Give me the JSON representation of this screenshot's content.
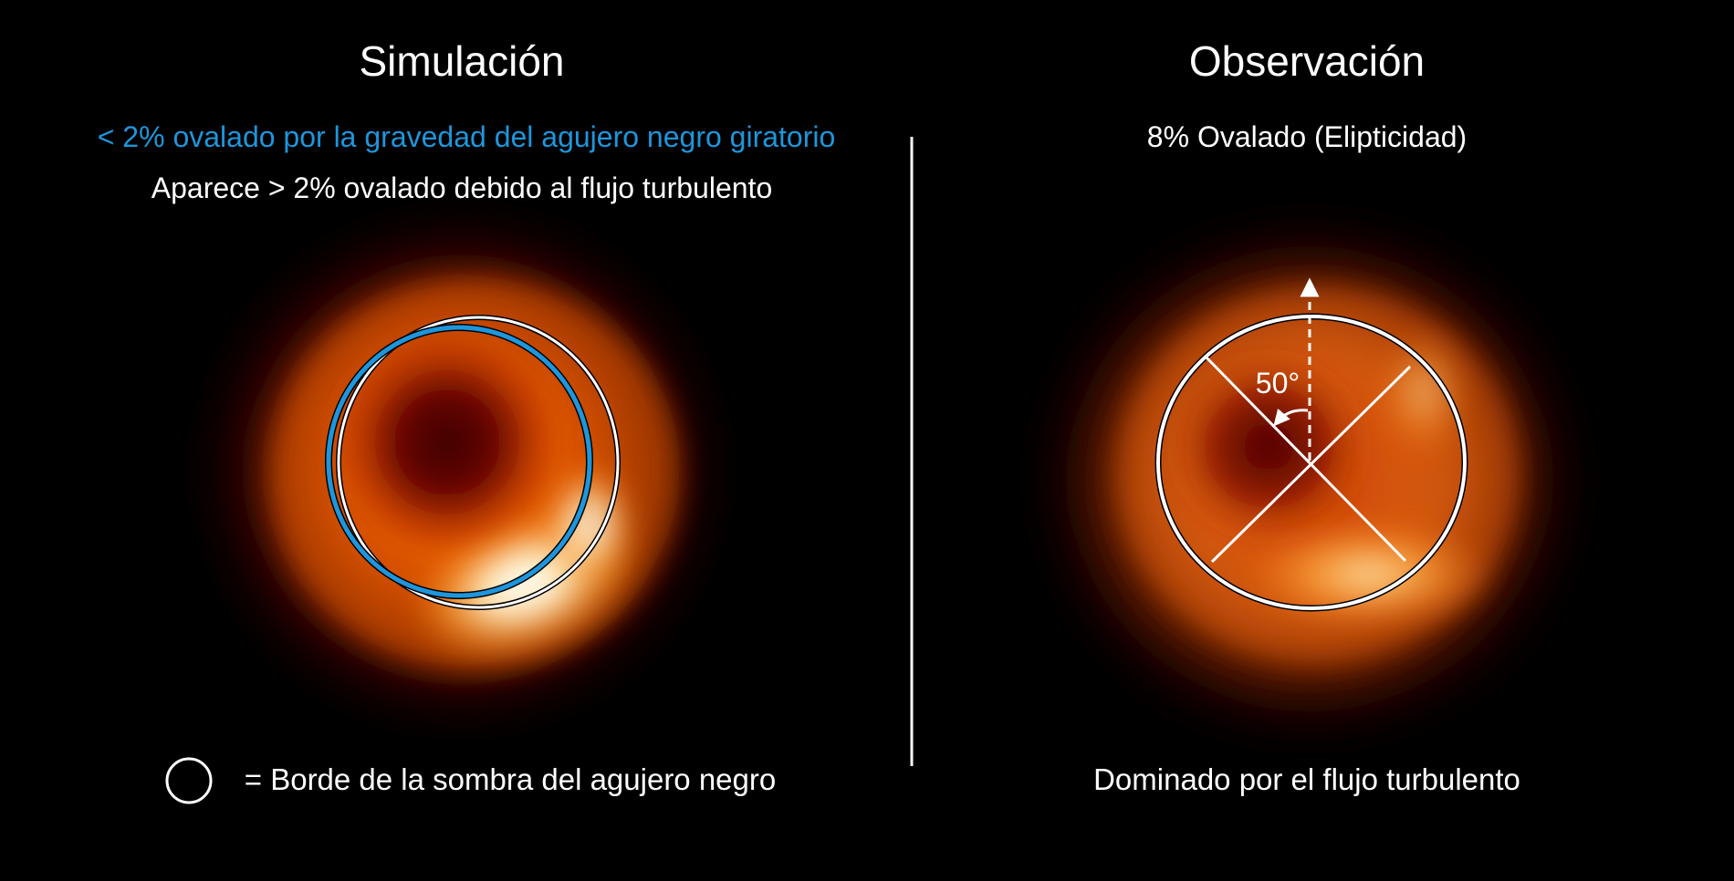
{
  "left_panel": {
    "title": "Simulación",
    "note_blue": "< 2% ovalado por la gravedad del agujero negro giratorio",
    "note_white": "Aparece  > 2% ovalado debido al flujo turbulento",
    "legend_text": "= Borde de la sombra del agujero negro"
  },
  "right_panel": {
    "title": "Observación",
    "note": "8% Ovalado (Elipticidad)",
    "angle_label": "50°",
    "footer": "Dominado por el flujo turbulento"
  },
  "colors": {
    "background": "#000000",
    "text": "#ffffff",
    "blue_accent": "#1e96dc",
    "divider": "#ffffff"
  }
}
